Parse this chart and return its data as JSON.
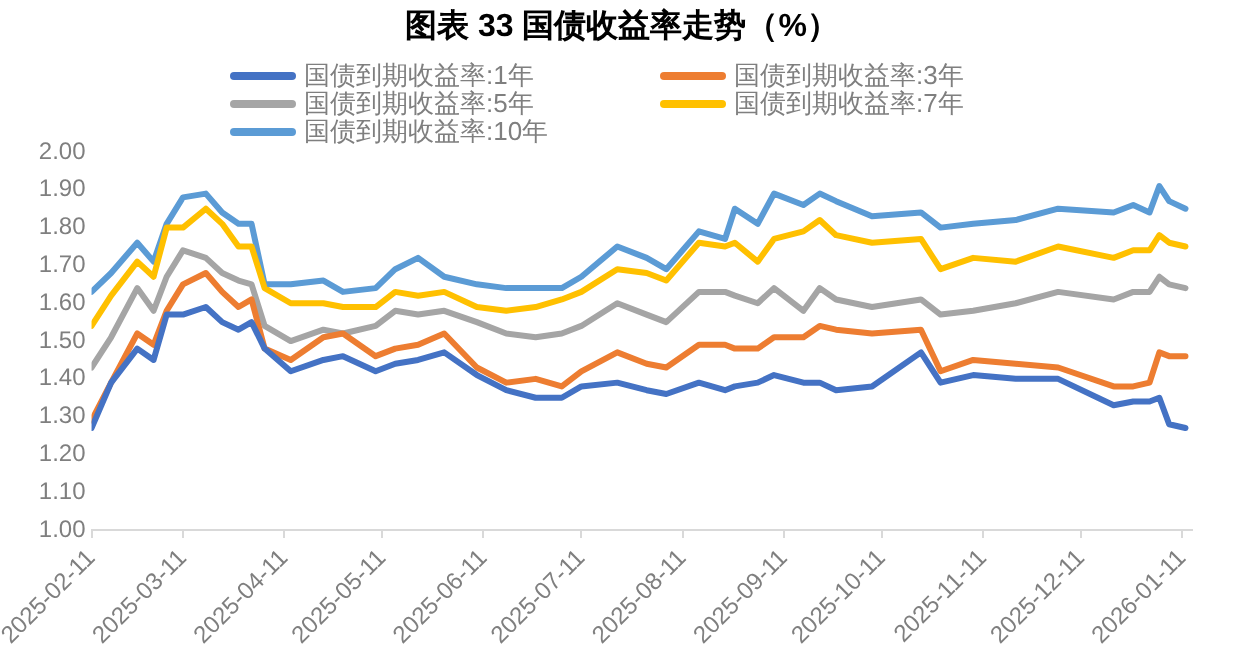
{
  "chart_data": {
    "type": "line",
    "title": "图表 33 国债收益率走势（%）",
    "x": [
      "2025-02-11",
      "2025-02-17",
      "2025-02-25",
      "2025-03-02",
      "2025-03-06",
      "2025-03-11",
      "2025-03-18",
      "2025-03-23",
      "2025-03-28",
      "2025-04-01",
      "2025-04-05",
      "2025-04-13",
      "2025-04-23",
      "2025-04-29",
      "2025-05-09",
      "2025-05-15",
      "2025-05-22",
      "2025-05-30",
      "2025-06-09",
      "2025-06-18",
      "2025-06-27",
      "2025-07-05",
      "2025-07-11",
      "2025-07-22",
      "2025-07-31",
      "2025-08-06",
      "2025-08-16",
      "2025-08-24",
      "2025-08-27",
      "2025-09-03",
      "2025-09-08",
      "2025-09-17",
      "2025-09-22",
      "2025-09-27",
      "2025-10-08",
      "2025-10-23",
      "2025-10-29",
      "2025-11-08",
      "2025-11-21",
      "2025-12-04",
      "2025-12-21",
      "2025-12-27",
      "2026-01-01",
      "2026-01-04",
      "2026-01-07",
      "2026-01-12"
    ],
    "series": [
      {
        "name": "国债到期收益率:1年",
        "color": "#4472c4",
        "values": [
          1.27,
          1.39,
          1.48,
          1.45,
          1.57,
          1.57,
          1.59,
          1.55,
          1.53,
          1.55,
          1.48,
          1.42,
          1.45,
          1.46,
          1.42,
          1.44,
          1.45,
          1.47,
          1.41,
          1.37,
          1.35,
          1.35,
          1.38,
          1.39,
          1.37,
          1.36,
          1.39,
          1.37,
          1.38,
          1.39,
          1.41,
          1.39,
          1.39,
          1.37,
          1.38,
          1.47,
          1.39,
          1.41,
          1.4,
          1.4,
          1.33,
          1.34,
          1.34,
          1.35,
          1.28,
          1.27
        ]
      },
      {
        "name": "国债到期收益率:3年",
        "color": "#ed7d31",
        "values": [
          1.29,
          1.39,
          1.52,
          1.49,
          1.58,
          1.65,
          1.68,
          1.63,
          1.59,
          1.61,
          1.48,
          1.45,
          1.51,
          1.52,
          1.46,
          1.48,
          1.49,
          1.52,
          1.43,
          1.39,
          1.4,
          1.38,
          1.42,
          1.47,
          1.44,
          1.43,
          1.49,
          1.49,
          1.48,
          1.48,
          1.51,
          1.51,
          1.54,
          1.53,
          1.52,
          1.53,
          1.42,
          1.45,
          1.44,
          1.43,
          1.38,
          1.38,
          1.39,
          1.47,
          1.46,
          1.46
        ]
      },
      {
        "name": "国债到期收益率:5年",
        "color": "#a5a5a5",
        "values": [
          1.43,
          1.51,
          1.64,
          1.58,
          1.67,
          1.74,
          1.72,
          1.68,
          1.66,
          1.65,
          1.54,
          1.5,
          1.53,
          1.52,
          1.54,
          1.58,
          1.57,
          1.58,
          1.55,
          1.52,
          1.51,
          1.52,
          1.54,
          1.6,
          1.57,
          1.55,
          1.63,
          1.63,
          1.62,
          1.6,
          1.64,
          1.58,
          1.64,
          1.61,
          1.59,
          1.61,
          1.57,
          1.58,
          1.6,
          1.63,
          1.61,
          1.63,
          1.63,
          1.67,
          1.65,
          1.64
        ]
      },
      {
        "name": "国债到期收益率:7年",
        "color": "#ffc000",
        "values": [
          1.54,
          1.62,
          1.71,
          1.67,
          1.8,
          1.8,
          1.85,
          1.81,
          1.75,
          1.75,
          1.64,
          1.6,
          1.6,
          1.59,
          1.59,
          1.63,
          1.62,
          1.63,
          1.59,
          1.58,
          1.59,
          1.61,
          1.63,
          1.69,
          1.68,
          1.66,
          1.76,
          1.75,
          1.76,
          1.71,
          1.77,
          1.79,
          1.82,
          1.78,
          1.76,
          1.77,
          1.69,
          1.72,
          1.71,
          1.75,
          1.72,
          1.74,
          1.74,
          1.78,
          1.76,
          1.75
        ]
      },
      {
        "name": "国债到期收益率:10年",
        "color": "#5b9bd5",
        "values": [
          1.63,
          1.68,
          1.76,
          1.71,
          1.81,
          1.88,
          1.89,
          1.84,
          1.81,
          1.81,
          1.65,
          1.65,
          1.66,
          1.63,
          1.64,
          1.69,
          1.72,
          1.67,
          1.65,
          1.64,
          1.64,
          1.64,
          1.67,
          1.75,
          1.72,
          1.69,
          1.79,
          1.77,
          1.85,
          1.81,
          1.89,
          1.86,
          1.89,
          1.87,
          1.83,
          1.84,
          1.8,
          1.81,
          1.82,
          1.85,
          1.84,
          1.86,
          1.84,
          1.91,
          1.87,
          1.85
        ]
      }
    ],
    "xlim": [
      "2025-02-11",
      "2026-01-14"
    ],
    "xticks": [
      "2025-02-11",
      "2025-03-11",
      "2025-04-11",
      "2025-05-11",
      "2025-06-11",
      "2025-07-11",
      "2025-08-11",
      "2025-09-11",
      "2025-10-11",
      "2025-11-11",
      "2025-12-11",
      "2026-01-11"
    ],
    "ylim": [
      1,
      2
    ],
    "yticks": [
      {
        "value": 1,
        "label": "1.00"
      },
      {
        "value": 1.1,
        "label": "1.10"
      },
      {
        "value": 1.2,
        "label": "1.20"
      },
      {
        "value": 1.3,
        "label": "1.30"
      },
      {
        "value": 1.4,
        "label": "1.40"
      },
      {
        "value": 1.5,
        "label": "1.50"
      },
      {
        "value": 1.6,
        "label": "1.60"
      },
      {
        "value": 1.7,
        "label": "1.70"
      },
      {
        "value": 1.8,
        "label": "1.80"
      },
      {
        "value": 1.9,
        "label": "1.90"
      },
      {
        "value": 2,
        "label": "2.00"
      }
    ],
    "grid": false,
    "legend": "top",
    "marker": "none",
    "line_style": "solid"
  }
}
